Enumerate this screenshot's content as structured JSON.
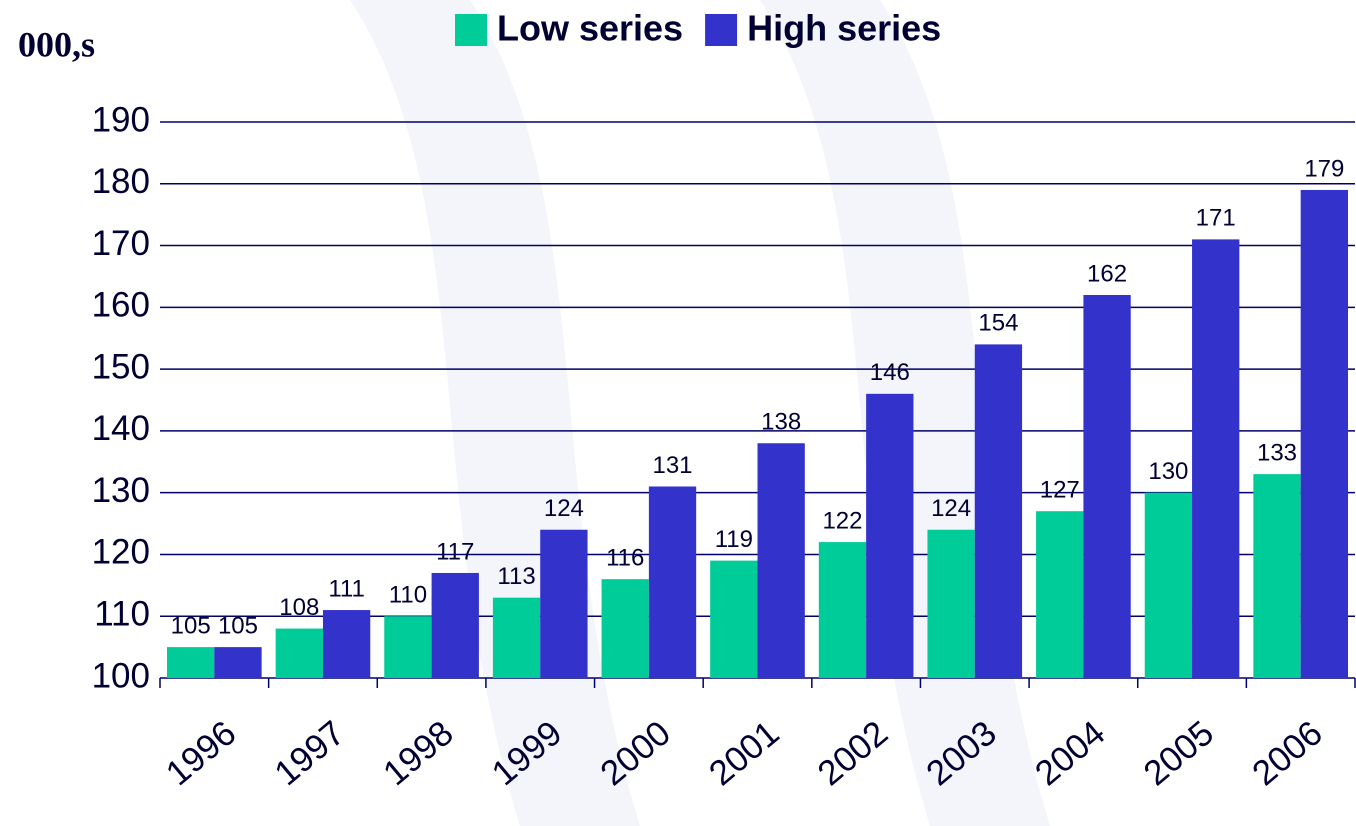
{
  "chart_data": {
    "type": "bar",
    "y_label": "000,s",
    "categories": [
      "1996",
      "1997",
      "1998",
      "1999",
      "2000",
      "2001",
      "2002",
      "2003",
      "2004",
      "2005",
      "2006"
    ],
    "series": [
      {
        "name": "Low series",
        "color": "#00cc99",
        "values": [
          105,
          108,
          110,
          113,
          116,
          119,
          122,
          124,
          127,
          130,
          133
        ]
      },
      {
        "name": "High series",
        "color": "#3333cc",
        "values": [
          105,
          111,
          117,
          124,
          131,
          138,
          146,
          154,
          162,
          171,
          179
        ]
      }
    ],
    "ylim": [
      100,
      190
    ],
    "yticks": [
      100,
      110,
      120,
      130,
      140,
      150,
      160,
      170,
      180,
      190
    ],
    "grid": true
  }
}
